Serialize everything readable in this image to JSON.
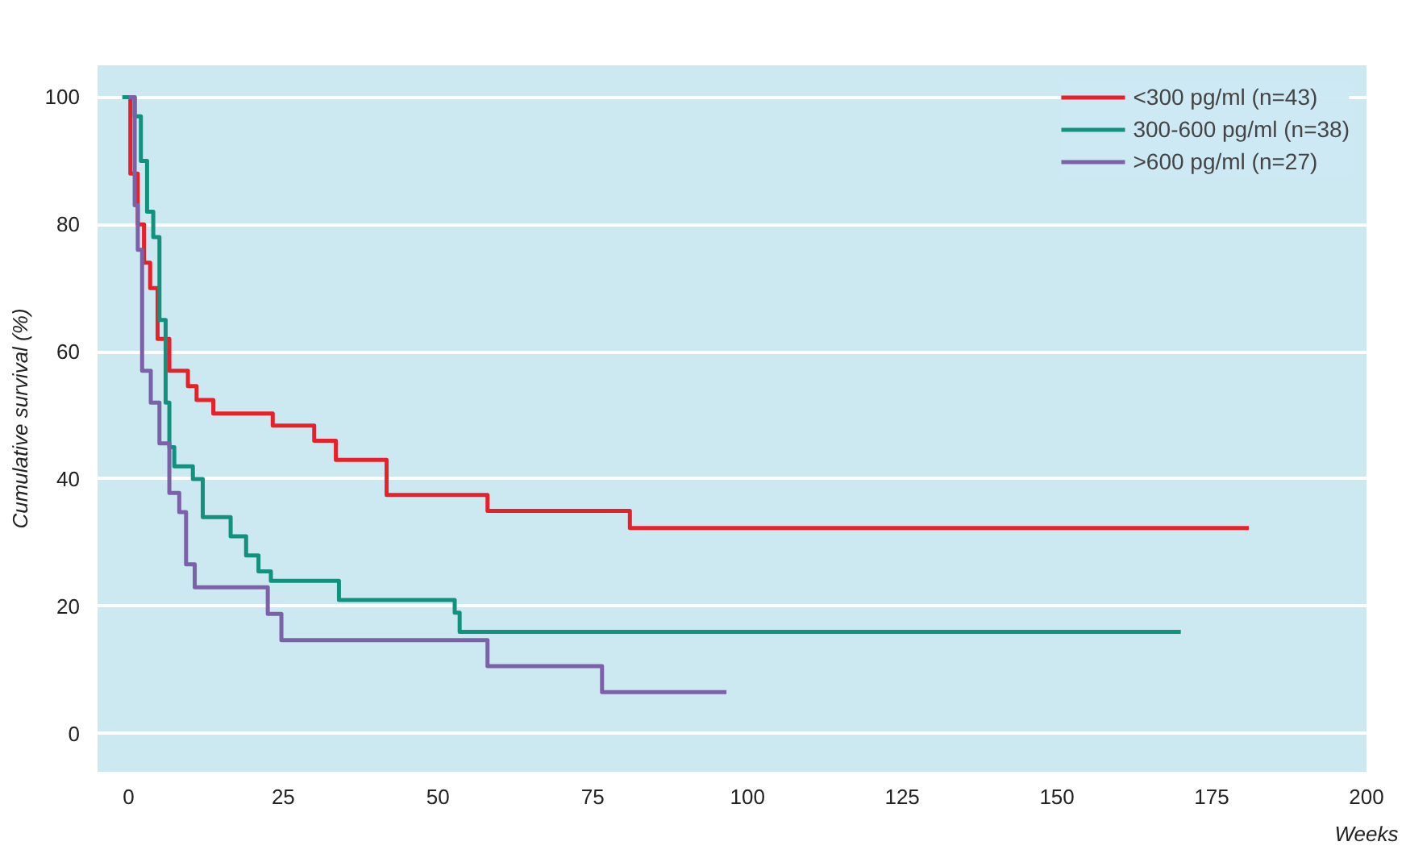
{
  "chart_data": {
    "type": "step",
    "xlabel": "Weeks",
    "ylabel": "Cumulative survival (%)",
    "xlim": [
      -5,
      200
    ],
    "xticks": [
      0,
      25,
      50,
      75,
      100,
      125,
      150,
      175,
      200
    ],
    "ylim": [
      -6,
      105
    ],
    "yticks": [
      0,
      20,
      40,
      60,
      80,
      100
    ],
    "grid": "y",
    "legend": "top right",
    "series": [
      {
        "name": "<300 pg/ml (n=43)",
        "color": "#e8202a",
        "x": [
          0,
          0.3,
          1.5,
          2.5,
          3.5,
          4.7,
          6.6,
          9.6,
          11,
          13.7,
          23.3,
          30,
          33.5,
          41.7,
          58,
          81,
          181
        ],
        "values": [
          100,
          88,
          80,
          74,
          70,
          62,
          57,
          54.6,
          52.4,
          50.3,
          48.4,
          46,
          43,
          37.5,
          35,
          32.3,
          32.3
        ]
      },
      {
        "name": "300-600 pg/ml (n=38)",
        "color": "#12917e",
        "x": [
          -1,
          1,
          2,
          3,
          4,
          5,
          6,
          6.6,
          7.4,
          10.4,
          12,
          16.5,
          19,
          21,
          23,
          34,
          52.7,
          53.5,
          170
        ],
        "values": [
          100,
          97,
          90,
          82,
          78,
          65,
          52,
          45,
          42,
          40,
          34,
          31,
          28,
          25.5,
          24,
          21,
          19,
          16,
          16
        ]
      },
      {
        "name": ">600 pg/ml (n=27)",
        "color": "#7b62a8",
        "x": [
          0,
          1,
          1.5,
          2.2,
          3.6,
          5,
          6.6,
          8.2,
          9.3,
          10.7,
          22.5,
          24.7,
          58,
          76.5,
          96.6
        ],
        "values": [
          100,
          83,
          76,
          57,
          52,
          45.6,
          37.8,
          34.8,
          26.6,
          23,
          18.8,
          14.7,
          10.6,
          6.5,
          6.5
        ]
      }
    ]
  }
}
